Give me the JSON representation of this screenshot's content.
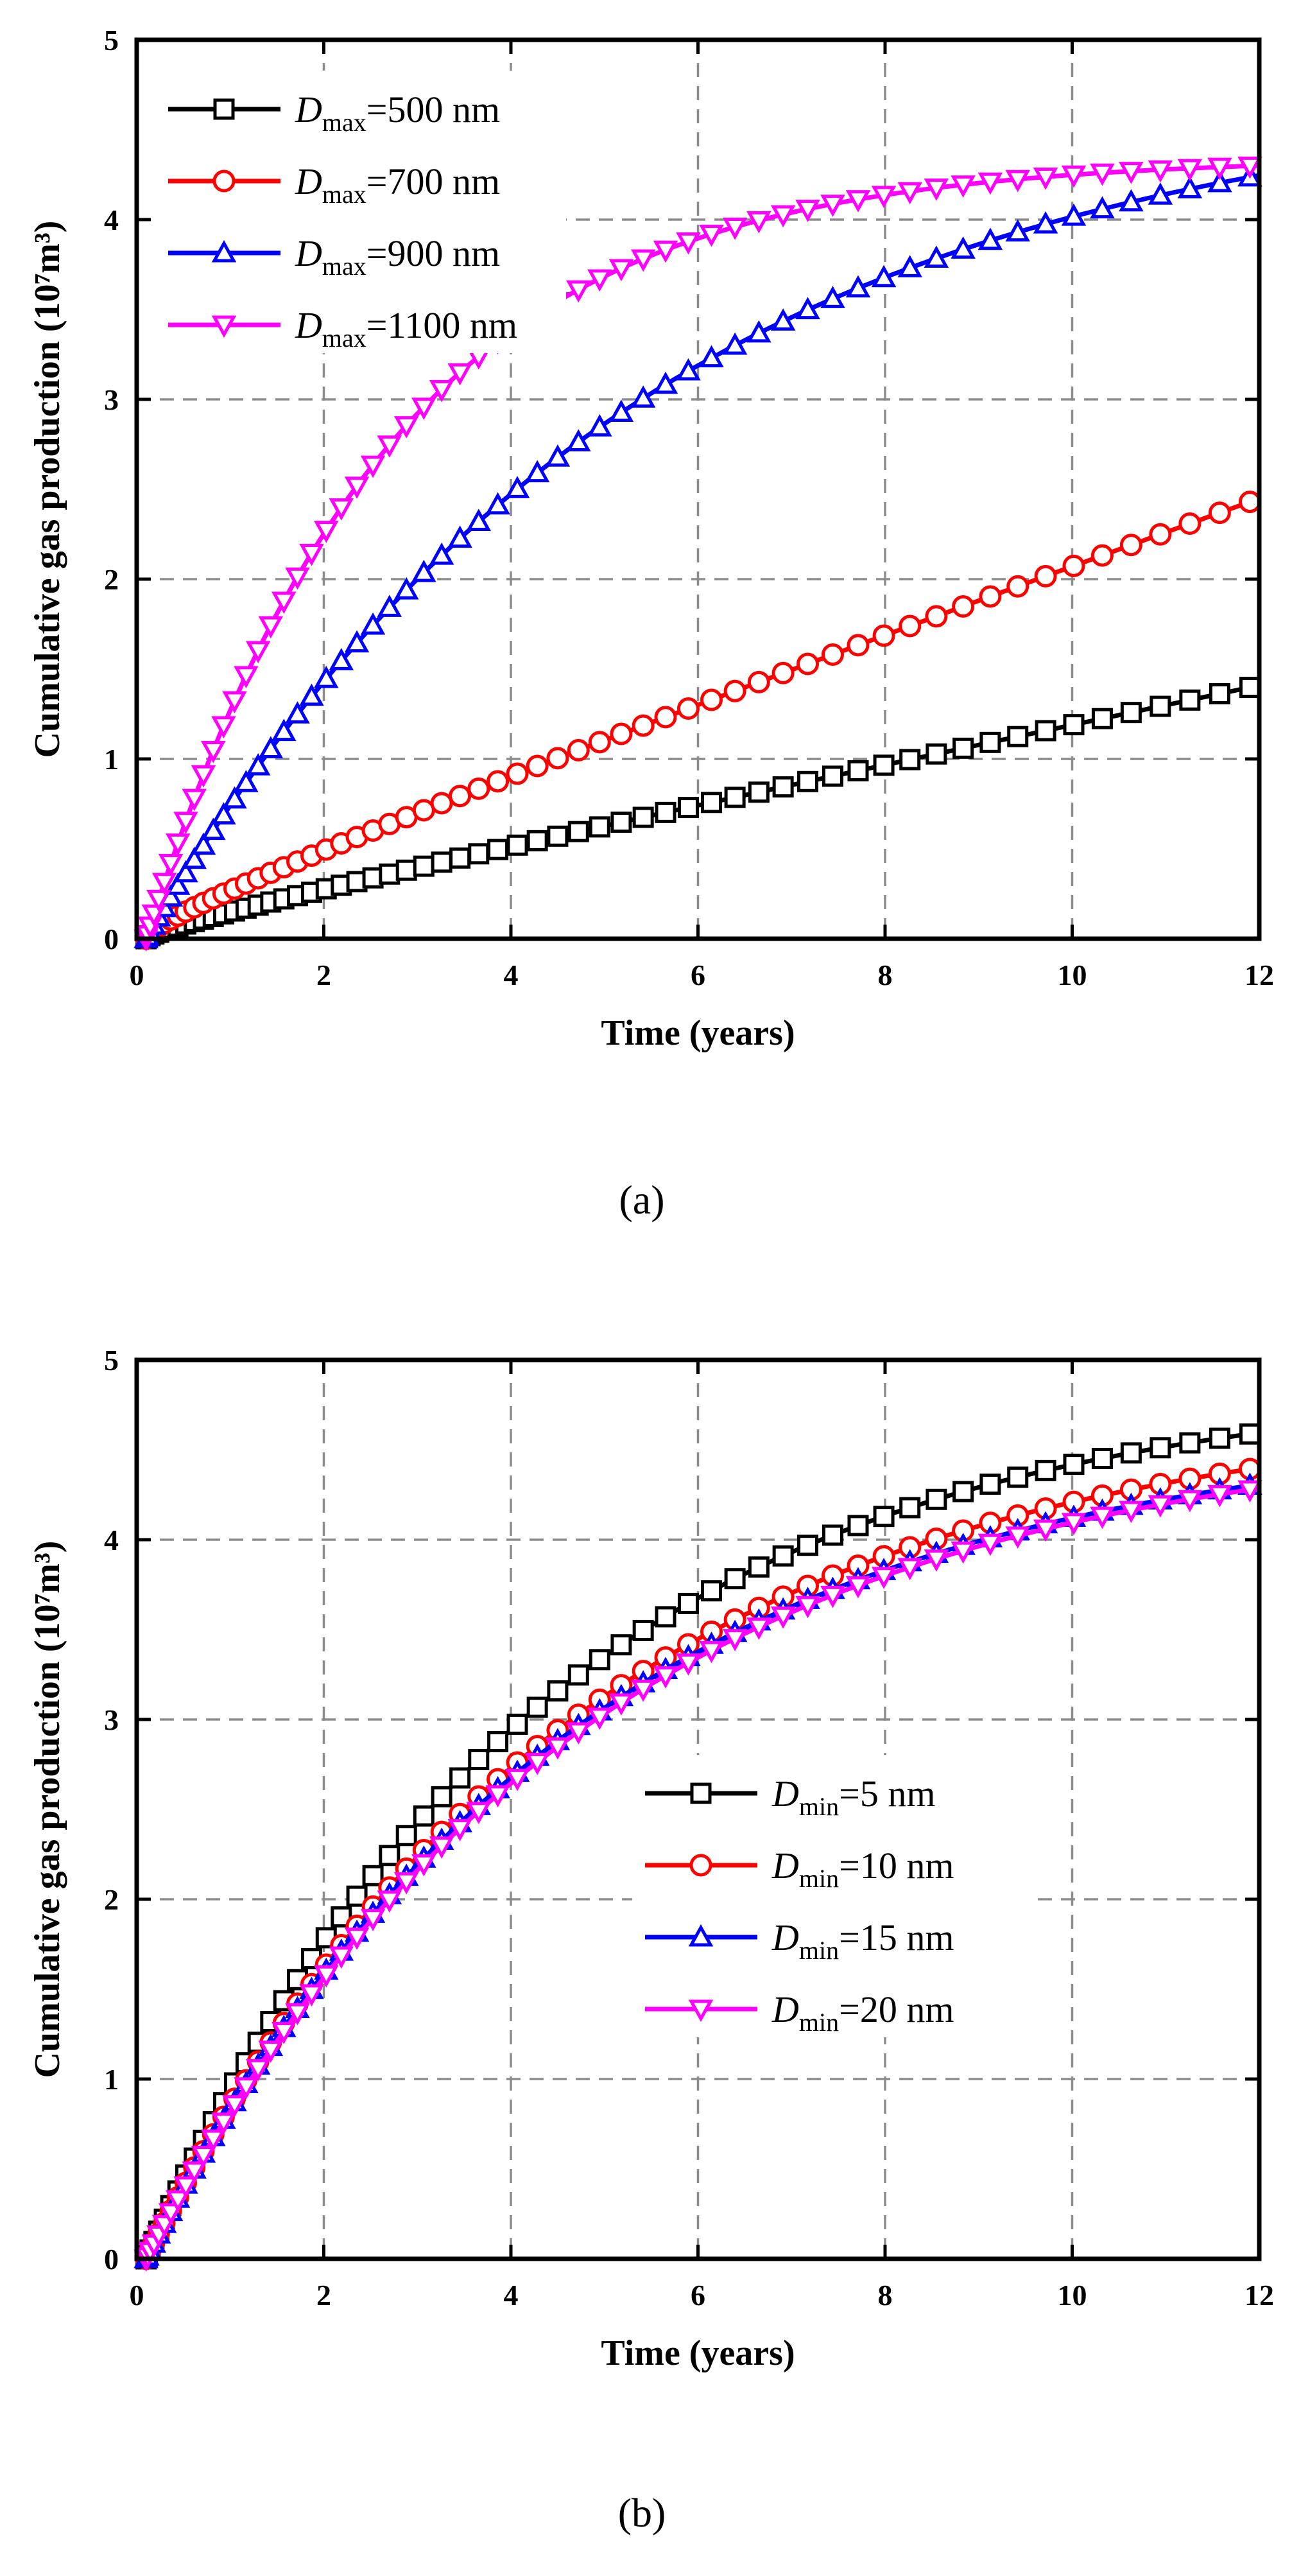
{
  "chart_data": [
    {
      "type": "line",
      "panel_label": "(a)",
      "title": "",
      "xlabel": "Time (years)",
      "ylabel": "Cumulative gas production (10⁷m³)",
      "xlim": [
        0,
        12
      ],
      "ylim": [
        0,
        5
      ],
      "xticks": [
        "0",
        "2",
        "4",
        "6",
        "8",
        "10",
        "12"
      ],
      "yticks": [
        "0",
        "1",
        "2",
        "3",
        "4",
        "5"
      ],
      "grid": true,
      "legend_position": "top-left",
      "legend_symbol": "D",
      "series": [
        {
          "name": "Dmax=500 nm",
          "label_sub": "max",
          "label_value": "=500 nm",
          "color": "#000000",
          "marker": "square",
          "curve": {
            "k": 0.02,
            "a": 0.107,
            "q": 0.015
          }
        },
        {
          "name": "Dmax=700 nm",
          "label_sub": "max",
          "label_value": "=700 nm",
          "color": "#ff0000",
          "marker": "circle",
          "curve": {
            "k": 0.04,
            "a": 0.183,
            "q": 0.03
          }
        },
        {
          "name": "Dmax=900 nm",
          "label_sub": "max",
          "label_value": "=900 nm",
          "color": "#0000ff",
          "marker": "triangle-up",
          "curve": {
            "k": 4.75,
            "a": 0.1885,
            "q": 0.0
          }
        },
        {
          "name": "Dmax=1100 nm",
          "label_sub": "max",
          "label_value": "=1100 nm",
          "color": "#ff00ff",
          "marker": "triangle-down",
          "curve": {
            "k": 4.345,
            "a": 0.3845,
            "q": 0.0
          }
        }
      ]
    },
    {
      "type": "line",
      "panel_label": "(b)",
      "title": "",
      "xlabel": "Time (years)",
      "ylabel": "Cumulative gas production (10⁷m³)",
      "xlim": [
        0,
        12
      ],
      "ylim": [
        0,
        5
      ],
      "xticks": [
        "0",
        "2",
        "4",
        "6",
        "8",
        "10",
        "12"
      ],
      "yticks": [
        "0",
        "1",
        "2",
        "3",
        "4",
        "5"
      ],
      "grid": true,
      "legend_position": "center-right",
      "legend_symbol": "D",
      "series": [
        {
          "name": "Dmin=5 nm",
          "label_sub": "min",
          "label_value": "=5 nm",
          "color": "#000000",
          "marker": "square",
          "curve": {
            "k": 4.89,
            "a": 0.236,
            "q": 0.0
          }
        },
        {
          "name": "Dmin=10 nm",
          "label_sub": "min",
          "label_value": "=10 nm",
          "color": "#ff0000",
          "marker": "circle",
          "curve": {
            "k": 4.75,
            "a": 0.2193,
            "q": 0.0
          }
        },
        {
          "name": "Dmin=15 nm",
          "label_sub": "min",
          "label_value": "=15 nm",
          "color": "#0000ff",
          "marker": "triangle-up",
          "curve": {
            "k": 4.65,
            "a": 0.2196,
            "q": 0.0
          }
        },
        {
          "name": "Dmin=20 nm",
          "label_sub": "min",
          "label_value": "=20 nm",
          "color": "#ff00ff",
          "marker": "triangle-down",
          "curve": {
            "k": 4.64,
            "a": 0.2163,
            "q": 0.0
          }
        }
      ]
    }
  ]
}
